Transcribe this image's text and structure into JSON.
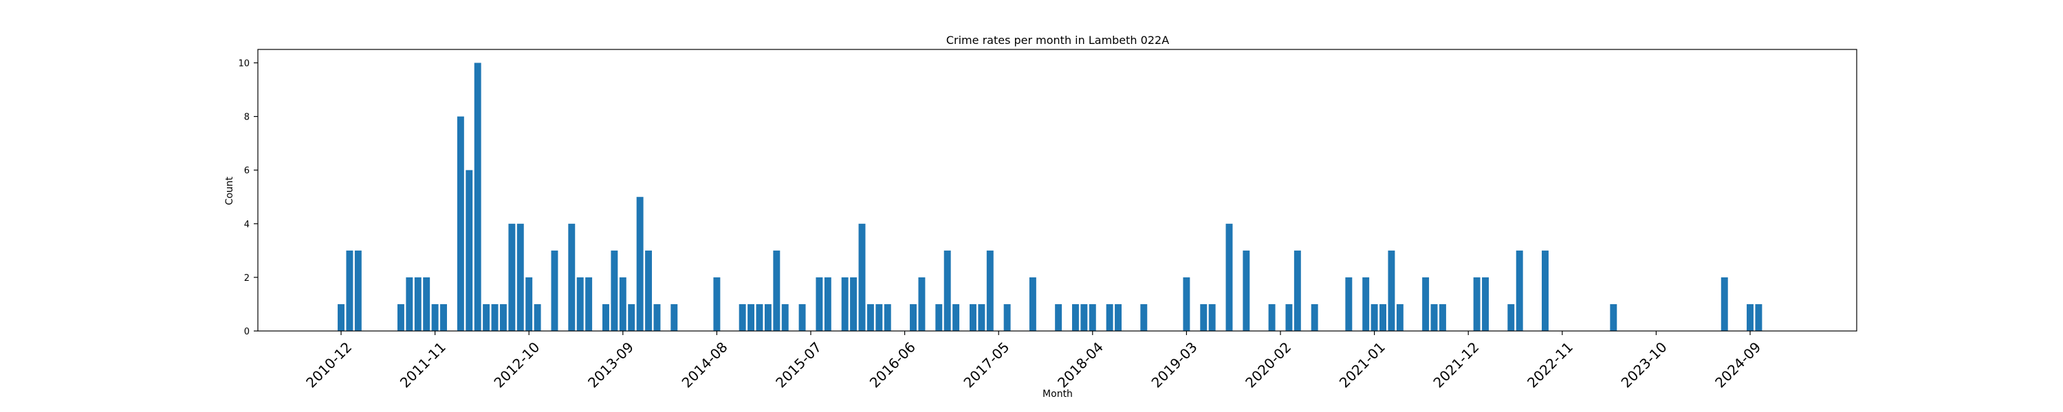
{
  "chart_data": {
    "type": "bar",
    "title": "Crime rates per month in Lambeth 022A",
    "xlabel": "Month",
    "ylabel": "Count",
    "ylim": [
      0,
      10.5
    ],
    "y_ticks": [
      0,
      2,
      4,
      6,
      8,
      10
    ],
    "x_tick_labels": [
      "2010-12",
      "2011-11",
      "2012-10",
      "2013-09",
      "2014-08",
      "2015-07",
      "2016-06",
      "2017-05",
      "2018-04",
      "2019-03",
      "2020-02",
      "2021-01",
      "2021-12",
      "2022-11",
      "2023-10",
      "2024-09"
    ],
    "bar_color": "#1f77b4",
    "grid": false,
    "series": [
      {
        "x": [
          "2010-12",
          "2011-01",
          "2011-02",
          "2011-07",
          "2011-08",
          "2011-09",
          "2011-10",
          "2011-11",
          "2011-12",
          "2012-02",
          "2012-03",
          "2012-04",
          "2012-05",
          "2012-06",
          "2012-07",
          "2012-08",
          "2012-09",
          "2012-10",
          "2012-11",
          "2013-01",
          "2013-03",
          "2013-04",
          "2013-05",
          "2013-07",
          "2013-08",
          "2013-09",
          "2013-10",
          "2013-11",
          "2013-12",
          "2014-01",
          "2014-03",
          "2014-08",
          "2014-11",
          "2014-12",
          "2015-01",
          "2015-02",
          "2015-03",
          "2015-04",
          "2015-06",
          "2015-08",
          "2015-09",
          "2015-11",
          "2015-12",
          "2016-01",
          "2016-02",
          "2016-03",
          "2016-04",
          "2016-07",
          "2016-08",
          "2016-10",
          "2016-11",
          "2016-12",
          "2017-02",
          "2017-03",
          "2017-04",
          "2017-06",
          "2017-09",
          "2017-12",
          "2018-02",
          "2018-03",
          "2018-04",
          "2018-06",
          "2018-07",
          "2018-10",
          "2019-03",
          "2019-05",
          "2019-06",
          "2019-08",
          "2019-10",
          "2020-01",
          "2020-03",
          "2020-04",
          "2020-06",
          "2020-10",
          "2020-12",
          "2021-01",
          "2021-02",
          "2021-03",
          "2021-04",
          "2021-07",
          "2021-08",
          "2021-09",
          "2022-01",
          "2022-02",
          "2022-05",
          "2022-06",
          "2022-09",
          "2023-05",
          "2024-06",
          "2024-09",
          "2024-10"
        ],
        "values": [
          1,
          3,
          3,
          1,
          2,
          2,
          2,
          1,
          1,
          8,
          6,
          10,
          1,
          1,
          1,
          4,
          4,
          2,
          1,
          3,
          4,
          2,
          2,
          1,
          3,
          2,
          1,
          5,
          3,
          1,
          1,
          2,
          1,
          1,
          1,
          1,
          3,
          1,
          1,
          2,
          2,
          2,
          2,
          4,
          1,
          1,
          1,
          1,
          2,
          1,
          3,
          1,
          1,
          1,
          3,
          1,
          2,
          1,
          1,
          1,
          1,
          1,
          1,
          1,
          2,
          1,
          1,
          4,
          3,
          1,
          1,
          3,
          1,
          2,
          2,
          1,
          1,
          3,
          1,
          2,
          1,
          1,
          2,
          2,
          1,
          3,
          3,
          1,
          2,
          1,
          1
        ]
      }
    ]
  }
}
